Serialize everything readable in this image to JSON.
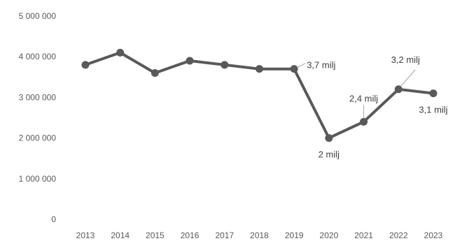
{
  "chart_data": {
    "type": "line",
    "categories": [
      "2013",
      "2014",
      "2015",
      "2016",
      "2017",
      "2018",
      "2019",
      "2020",
      "2021",
      "2022",
      "2023"
    ],
    "series": [
      {
        "values": [
          3800000,
          4100000,
          3600000,
          3900000,
          3800000,
          3700000,
          3700000,
          2000000,
          2400000,
          3200000,
          3100000
        ]
      }
    ],
    "ylim": [
      0,
      5000000
    ],
    "yticks": [
      0,
      1000000,
      2000000,
      3000000,
      4000000,
      5000000
    ],
    "ytick_labels": [
      "0",
      "1 000 000",
      "2 000 000",
      "3 000 000",
      "4 000 000",
      "5 000 000"
    ],
    "data_labels": [
      {
        "category": "2019",
        "text": "3,7 milj",
        "position": "right"
      },
      {
        "category": "2020",
        "text": "2 milj",
        "position": "below"
      },
      {
        "category": "2021",
        "text": "2,4 milj",
        "position": "above"
      },
      {
        "category": "2022",
        "text": "3,2 milj",
        "position": "above-right"
      },
      {
        "category": "2023",
        "text": "3,1 milj",
        "position": "below"
      }
    ],
    "grid": false,
    "legend": "none",
    "colors": {
      "line": "#595959",
      "marker": "#595959",
      "text": "#595959",
      "label": "#404040"
    }
  }
}
